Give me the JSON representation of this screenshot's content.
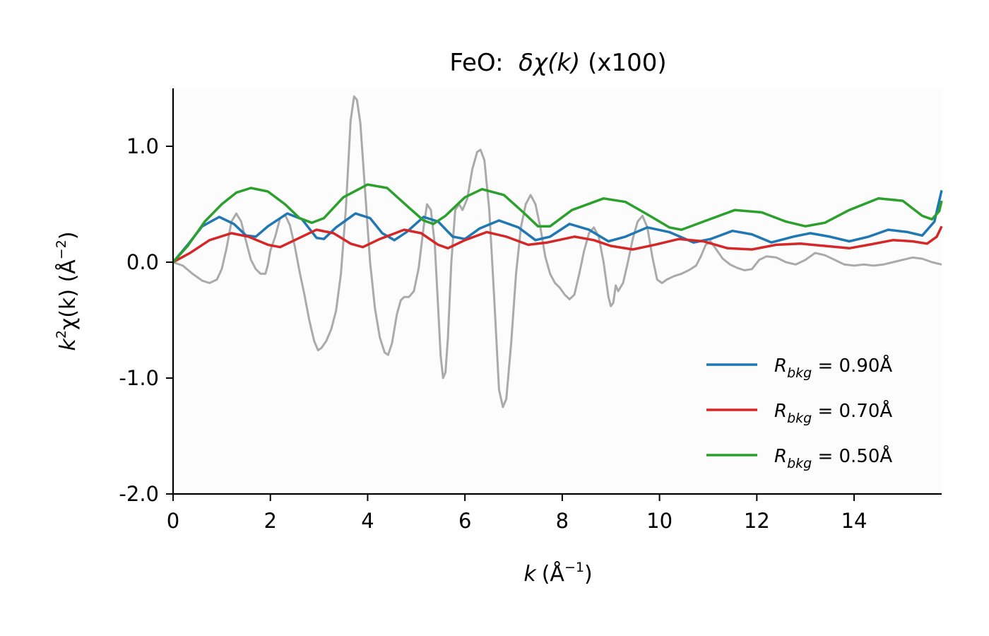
{
  "chart_data": {
    "type": "line",
    "title": {
      "prefix": "FeO:  ",
      "math": "δχ(k)",
      "suffix": " (x100)"
    },
    "xlabel": {
      "main": "k",
      "unit": "(Å",
      "sup": "−1",
      "close": ")"
    },
    "ylabel": {
      "k": "k",
      "sup2": "2",
      "chi": "χ(k)",
      "unit": " (Å",
      "supu": "−2",
      "close": ")"
    },
    "xlim": [
      0,
      15.8
    ],
    "ylim": [
      -2.0,
      1.5
    ],
    "xticks": [
      0,
      2,
      4,
      6,
      8,
      10,
      12,
      14
    ],
    "xtick_labels": [
      "0",
      "2",
      "4",
      "6",
      "8",
      "10",
      "12",
      "14"
    ],
    "yticks": [
      -2.0,
      -1.0,
      0.0,
      1.0
    ],
    "ytick_labels": [
      "-2.0",
      "-1.0",
      "0.0",
      "1.0"
    ],
    "grid": false,
    "legend_position": "lower-right",
    "series": [
      {
        "color": "#aaaaaa",
        "points": [
          [
            0,
            0
          ],
          [
            0.2,
            -0.03
          ],
          [
            0.4,
            -0.1
          ],
          [
            0.6,
            -0.16
          ],
          [
            0.75,
            -0.18
          ],
          [
            0.9,
            -0.15
          ],
          [
            1.0,
            -0.06
          ],
          [
            1.1,
            0.12
          ],
          [
            1.2,
            0.35
          ],
          [
            1.3,
            0.42
          ],
          [
            1.4,
            0.35
          ],
          [
            1.5,
            0.18
          ],
          [
            1.6,
            0.02
          ],
          [
            1.7,
            -0.06
          ],
          [
            1.8,
            -0.1
          ],
          [
            1.9,
            -0.1
          ],
          [
            1.95,
            -0.02
          ],
          [
            2.0,
            0.1
          ],
          [
            2.1,
            0.22
          ],
          [
            2.2,
            0.38
          ],
          [
            2.3,
            0.41
          ],
          [
            2.4,
            0.32
          ],
          [
            2.5,
            0.14
          ],
          [
            2.6,
            -0.08
          ],
          [
            2.7,
            -0.28
          ],
          [
            2.8,
            -0.5
          ],
          [
            2.9,
            -0.68
          ],
          [
            2.98,
            -0.76
          ],
          [
            3.05,
            -0.74
          ],
          [
            3.15,
            -0.68
          ],
          [
            3.25,
            -0.58
          ],
          [
            3.35,
            -0.42
          ],
          [
            3.45,
            -0.1
          ],
          [
            3.55,
            0.45
          ],
          [
            3.65,
            1.22
          ],
          [
            3.72,
            1.43
          ],
          [
            3.78,
            1.4
          ],
          [
            3.85,
            1.2
          ],
          [
            3.95,
            0.6
          ],
          [
            4.05,
            0.0
          ],
          [
            4.15,
            -0.4
          ],
          [
            4.25,
            -0.65
          ],
          [
            4.35,
            -0.78
          ],
          [
            4.42,
            -0.8
          ],
          [
            4.5,
            -0.7
          ],
          [
            4.6,
            -0.45
          ],
          [
            4.68,
            -0.33
          ],
          [
            4.75,
            -0.3
          ],
          [
            4.85,
            -0.3
          ],
          [
            4.95,
            -0.25
          ],
          [
            5.05,
            -0.05
          ],
          [
            5.15,
            0.3
          ],
          [
            5.22,
            0.5
          ],
          [
            5.3,
            0.45
          ],
          [
            5.38,
            0.15
          ],
          [
            5.45,
            -0.4
          ],
          [
            5.5,
            -0.8
          ],
          [
            5.55,
            -1.0
          ],
          [
            5.6,
            -0.95
          ],
          [
            5.65,
            -0.65
          ],
          [
            5.72,
            0.0
          ],
          [
            5.8,
            0.45
          ],
          [
            5.88,
            0.5
          ],
          [
            5.95,
            0.45
          ],
          [
            6.05,
            0.55
          ],
          [
            6.15,
            0.8
          ],
          [
            6.25,
            0.95
          ],
          [
            6.32,
            0.97
          ],
          [
            6.4,
            0.88
          ],
          [
            6.5,
            0.45
          ],
          [
            6.6,
            -0.3
          ],
          [
            6.7,
            -1.1
          ],
          [
            6.78,
            -1.25
          ],
          [
            6.85,
            -1.18
          ],
          [
            6.95,
            -0.7
          ],
          [
            7.05,
            -0.1
          ],
          [
            7.15,
            0.3
          ],
          [
            7.25,
            0.5
          ],
          [
            7.35,
            0.58
          ],
          [
            7.45,
            0.5
          ],
          [
            7.55,
            0.3
          ],
          [
            7.65,
            0.05
          ],
          [
            7.75,
            -0.1
          ],
          [
            7.85,
            -0.18
          ],
          [
            7.95,
            -0.22
          ],
          [
            8.05,
            -0.28
          ],
          [
            8.15,
            -0.32
          ],
          [
            8.25,
            -0.28
          ],
          [
            8.35,
            -0.1
          ],
          [
            8.45,
            0.1
          ],
          [
            8.55,
            0.25
          ],
          [
            8.65,
            0.3
          ],
          [
            8.75,
            0.22
          ],
          [
            8.85,
            0.0
          ],
          [
            8.95,
            -0.3
          ],
          [
            9.0,
            -0.38
          ],
          [
            9.05,
            -0.35
          ],
          [
            9.1,
            -0.2
          ],
          [
            9.15,
            -0.25
          ],
          [
            9.25,
            -0.18
          ],
          [
            9.35,
            0.0
          ],
          [
            9.45,
            0.2
          ],
          [
            9.55,
            0.35
          ],
          [
            9.65,
            0.4
          ],
          [
            9.75,
            0.3
          ],
          [
            9.85,
            0.05
          ],
          [
            9.95,
            -0.15
          ],
          [
            10.05,
            -0.18
          ],
          [
            10.15,
            -0.15
          ],
          [
            10.3,
            -0.12
          ],
          [
            10.45,
            -0.1
          ],
          [
            10.6,
            -0.07
          ],
          [
            10.75,
            -0.03
          ],
          [
            10.85,
            0.05
          ],
          [
            10.95,
            0.15
          ],
          [
            11.05,
            0.18
          ],
          [
            11.15,
            0.12
          ],
          [
            11.3,
            0.03
          ],
          [
            11.45,
            -0.02
          ],
          [
            11.6,
            -0.05
          ],
          [
            11.75,
            -0.07
          ],
          [
            11.9,
            -0.06
          ],
          [
            12.05,
            0.02
          ],
          [
            12.2,
            0.05
          ],
          [
            12.4,
            0.04
          ],
          [
            12.6,
            0.0
          ],
          [
            12.8,
            -0.02
          ],
          [
            13.0,
            0.02
          ],
          [
            13.2,
            0.08
          ],
          [
            13.4,
            0.06
          ],
          [
            13.6,
            0.02
          ],
          [
            13.8,
            -0.02
          ],
          [
            14.0,
            -0.03
          ],
          [
            14.2,
            -0.02
          ],
          [
            14.4,
            -0.03
          ],
          [
            14.6,
            -0.02
          ],
          [
            14.8,
            0.0
          ],
          [
            15.0,
            0.02
          ],
          [
            15.2,
            0.04
          ],
          [
            15.4,
            0.03
          ],
          [
            15.6,
            0.0
          ],
          [
            15.8,
            -0.02
          ]
        ]
      },
      {
        "name": "R_bkg = 0.90Å",
        "color": "#1f77b4",
        "points": [
          [
            0,
            0
          ],
          [
            0.3,
            0.15
          ],
          [
            0.6,
            0.31
          ],
          [
            0.95,
            0.39
          ],
          [
            1.25,
            0.33
          ],
          [
            1.5,
            0.23
          ],
          [
            1.7,
            0.22
          ],
          [
            1.95,
            0.31
          ],
          [
            2.35,
            0.42
          ],
          [
            2.65,
            0.37
          ],
          [
            2.95,
            0.21
          ],
          [
            3.1,
            0.2
          ],
          [
            3.35,
            0.3
          ],
          [
            3.75,
            0.42
          ],
          [
            4.05,
            0.38
          ],
          [
            4.3,
            0.25
          ],
          [
            4.55,
            0.19
          ],
          [
            4.8,
            0.26
          ],
          [
            5.15,
            0.39
          ],
          [
            5.45,
            0.35
          ],
          [
            5.75,
            0.22
          ],
          [
            6.0,
            0.2
          ],
          [
            6.3,
            0.29
          ],
          [
            6.7,
            0.36
          ],
          [
            7.1,
            0.3
          ],
          [
            7.45,
            0.19
          ],
          [
            7.75,
            0.22
          ],
          [
            8.15,
            0.33
          ],
          [
            8.55,
            0.28
          ],
          [
            8.95,
            0.18
          ],
          [
            9.3,
            0.22
          ],
          [
            9.75,
            0.3
          ],
          [
            10.2,
            0.26
          ],
          [
            10.7,
            0.17
          ],
          [
            11.05,
            0.2
          ],
          [
            11.5,
            0.27
          ],
          [
            11.9,
            0.24
          ],
          [
            12.3,
            0.17
          ],
          [
            12.75,
            0.22
          ],
          [
            13.1,
            0.25
          ],
          [
            13.5,
            0.22
          ],
          [
            13.9,
            0.18
          ],
          [
            14.3,
            0.22
          ],
          [
            14.7,
            0.28
          ],
          [
            15.1,
            0.26
          ],
          [
            15.4,
            0.23
          ],
          [
            15.65,
            0.35
          ],
          [
            15.8,
            0.62
          ]
        ]
      },
      {
        "name": "R_bkg = 0.70Å",
        "color": "#d62728",
        "points": [
          [
            0,
            0
          ],
          [
            0.35,
            0.08
          ],
          [
            0.75,
            0.19
          ],
          [
            1.2,
            0.25
          ],
          [
            1.55,
            0.22
          ],
          [
            1.95,
            0.15
          ],
          [
            2.2,
            0.13
          ],
          [
            2.6,
            0.21
          ],
          [
            2.95,
            0.28
          ],
          [
            3.3,
            0.25
          ],
          [
            3.65,
            0.16
          ],
          [
            3.9,
            0.13
          ],
          [
            4.25,
            0.2
          ],
          [
            4.75,
            0.28
          ],
          [
            5.1,
            0.25
          ],
          [
            5.45,
            0.15
          ],
          [
            5.65,
            0.12
          ],
          [
            6.0,
            0.19
          ],
          [
            6.45,
            0.26
          ],
          [
            6.85,
            0.22
          ],
          [
            7.3,
            0.15
          ],
          [
            7.7,
            0.17
          ],
          [
            8.25,
            0.22
          ],
          [
            8.65,
            0.19
          ],
          [
            9.0,
            0.14
          ],
          [
            9.45,
            0.11
          ],
          [
            9.9,
            0.15
          ],
          [
            10.4,
            0.2
          ],
          [
            10.9,
            0.18
          ],
          [
            11.4,
            0.12
          ],
          [
            11.9,
            0.11
          ],
          [
            12.4,
            0.15
          ],
          [
            12.9,
            0.16
          ],
          [
            13.4,
            0.14
          ],
          [
            13.9,
            0.12
          ],
          [
            14.3,
            0.15
          ],
          [
            14.8,
            0.19
          ],
          [
            15.2,
            0.18
          ],
          [
            15.5,
            0.16
          ],
          [
            15.7,
            0.22
          ],
          [
            15.8,
            0.31
          ]
        ]
      },
      {
        "name": "R_bkg = 0.50Å",
        "color": "#2ca02c",
        "points": [
          [
            0,
            0
          ],
          [
            0.3,
            0.14
          ],
          [
            0.65,
            0.35
          ],
          [
            1.0,
            0.5
          ],
          [
            1.3,
            0.6
          ],
          [
            1.6,
            0.64
          ],
          [
            1.95,
            0.61
          ],
          [
            2.3,
            0.5
          ],
          [
            2.6,
            0.38
          ],
          [
            2.85,
            0.34
          ],
          [
            3.1,
            0.38
          ],
          [
            3.5,
            0.56
          ],
          [
            4.0,
            0.67
          ],
          [
            4.4,
            0.64
          ],
          [
            4.85,
            0.47
          ],
          [
            5.15,
            0.36
          ],
          [
            5.35,
            0.33
          ],
          [
            5.6,
            0.4
          ],
          [
            6.0,
            0.56
          ],
          [
            6.35,
            0.63
          ],
          [
            6.8,
            0.58
          ],
          [
            7.2,
            0.43
          ],
          [
            7.5,
            0.31
          ],
          [
            7.75,
            0.31
          ],
          [
            8.2,
            0.45
          ],
          [
            8.85,
            0.55
          ],
          [
            9.3,
            0.52
          ],
          [
            9.8,
            0.4
          ],
          [
            10.2,
            0.3
          ],
          [
            10.45,
            0.28
          ],
          [
            10.9,
            0.35
          ],
          [
            11.55,
            0.45
          ],
          [
            12.1,
            0.43
          ],
          [
            12.6,
            0.35
          ],
          [
            13.0,
            0.31
          ],
          [
            13.4,
            0.34
          ],
          [
            13.9,
            0.45
          ],
          [
            14.5,
            0.55
          ],
          [
            15.0,
            0.53
          ],
          [
            15.4,
            0.4
          ],
          [
            15.6,
            0.37
          ],
          [
            15.75,
            0.44
          ],
          [
            15.8,
            0.53
          ]
        ]
      }
    ]
  }
}
